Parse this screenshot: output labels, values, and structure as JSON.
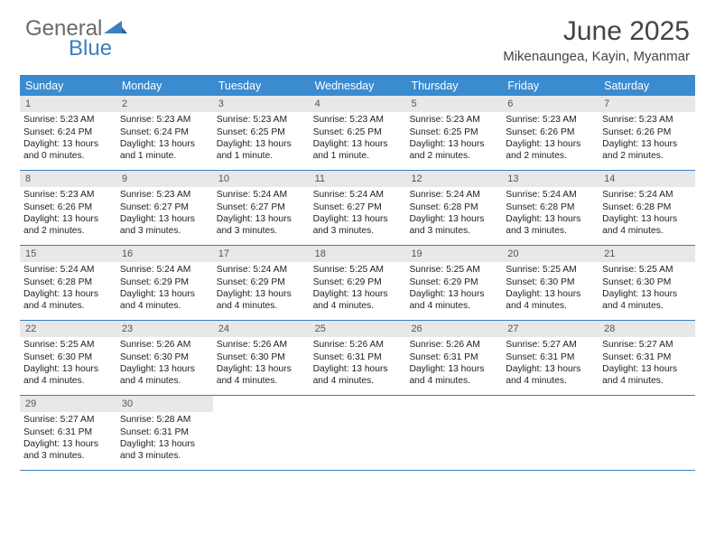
{
  "logo": {
    "word1": "General",
    "word2": "Blue"
  },
  "title": "June 2025",
  "location": "Mikenaungea, Kayin, Myanmar",
  "colors": {
    "header_bg": "#3a8bd0",
    "border": "#3a7fc4",
    "daynum_bg": "#e8e8e8",
    "logo_gray": "#6a6a6a",
    "logo_blue": "#3a7fc4"
  },
  "dow": [
    "Sunday",
    "Monday",
    "Tuesday",
    "Wednesday",
    "Thursday",
    "Friday",
    "Saturday"
  ],
  "weeks": [
    [
      {
        "n": "1",
        "sr": "5:23 AM",
        "ss": "6:24 PM",
        "dl": "13 hours and 0 minutes."
      },
      {
        "n": "2",
        "sr": "5:23 AM",
        "ss": "6:24 PM",
        "dl": "13 hours and 1 minute."
      },
      {
        "n": "3",
        "sr": "5:23 AM",
        "ss": "6:25 PM",
        "dl": "13 hours and 1 minute."
      },
      {
        "n": "4",
        "sr": "5:23 AM",
        "ss": "6:25 PM",
        "dl": "13 hours and 1 minute."
      },
      {
        "n": "5",
        "sr": "5:23 AM",
        "ss": "6:25 PM",
        "dl": "13 hours and 2 minutes."
      },
      {
        "n": "6",
        "sr": "5:23 AM",
        "ss": "6:26 PM",
        "dl": "13 hours and 2 minutes."
      },
      {
        "n": "7",
        "sr": "5:23 AM",
        "ss": "6:26 PM",
        "dl": "13 hours and 2 minutes."
      }
    ],
    [
      {
        "n": "8",
        "sr": "5:23 AM",
        "ss": "6:26 PM",
        "dl": "13 hours and 2 minutes."
      },
      {
        "n": "9",
        "sr": "5:23 AM",
        "ss": "6:27 PM",
        "dl": "13 hours and 3 minutes."
      },
      {
        "n": "10",
        "sr": "5:24 AM",
        "ss": "6:27 PM",
        "dl": "13 hours and 3 minutes."
      },
      {
        "n": "11",
        "sr": "5:24 AM",
        "ss": "6:27 PM",
        "dl": "13 hours and 3 minutes."
      },
      {
        "n": "12",
        "sr": "5:24 AM",
        "ss": "6:28 PM",
        "dl": "13 hours and 3 minutes."
      },
      {
        "n": "13",
        "sr": "5:24 AM",
        "ss": "6:28 PM",
        "dl": "13 hours and 3 minutes."
      },
      {
        "n": "14",
        "sr": "5:24 AM",
        "ss": "6:28 PM",
        "dl": "13 hours and 4 minutes."
      }
    ],
    [
      {
        "n": "15",
        "sr": "5:24 AM",
        "ss": "6:28 PM",
        "dl": "13 hours and 4 minutes."
      },
      {
        "n": "16",
        "sr": "5:24 AM",
        "ss": "6:29 PM",
        "dl": "13 hours and 4 minutes."
      },
      {
        "n": "17",
        "sr": "5:24 AM",
        "ss": "6:29 PM",
        "dl": "13 hours and 4 minutes."
      },
      {
        "n": "18",
        "sr": "5:25 AM",
        "ss": "6:29 PM",
        "dl": "13 hours and 4 minutes."
      },
      {
        "n": "19",
        "sr": "5:25 AM",
        "ss": "6:29 PM",
        "dl": "13 hours and 4 minutes."
      },
      {
        "n": "20",
        "sr": "5:25 AM",
        "ss": "6:30 PM",
        "dl": "13 hours and 4 minutes."
      },
      {
        "n": "21",
        "sr": "5:25 AM",
        "ss": "6:30 PM",
        "dl": "13 hours and 4 minutes."
      }
    ],
    [
      {
        "n": "22",
        "sr": "5:25 AM",
        "ss": "6:30 PM",
        "dl": "13 hours and 4 minutes."
      },
      {
        "n": "23",
        "sr": "5:26 AM",
        "ss": "6:30 PM",
        "dl": "13 hours and 4 minutes."
      },
      {
        "n": "24",
        "sr": "5:26 AM",
        "ss": "6:30 PM",
        "dl": "13 hours and 4 minutes."
      },
      {
        "n": "25",
        "sr": "5:26 AM",
        "ss": "6:31 PM",
        "dl": "13 hours and 4 minutes."
      },
      {
        "n": "26",
        "sr": "5:26 AM",
        "ss": "6:31 PM",
        "dl": "13 hours and 4 minutes."
      },
      {
        "n": "27",
        "sr": "5:27 AM",
        "ss": "6:31 PM",
        "dl": "13 hours and 4 minutes."
      },
      {
        "n": "28",
        "sr": "5:27 AM",
        "ss": "6:31 PM",
        "dl": "13 hours and 4 minutes."
      }
    ],
    [
      {
        "n": "29",
        "sr": "5:27 AM",
        "ss": "6:31 PM",
        "dl": "13 hours and 3 minutes."
      },
      {
        "n": "30",
        "sr": "5:28 AM",
        "ss": "6:31 PM",
        "dl": "13 hours and 3 minutes."
      },
      null,
      null,
      null,
      null,
      null
    ]
  ],
  "labels": {
    "sunrise": "Sunrise:",
    "sunset": "Sunset:",
    "daylight": "Daylight:"
  }
}
